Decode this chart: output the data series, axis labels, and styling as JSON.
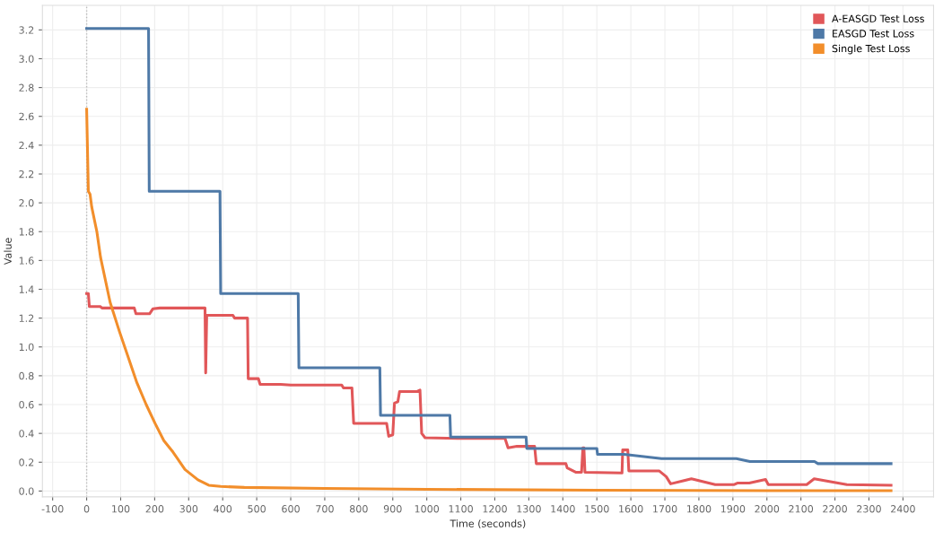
{
  "chart_data": {
    "type": "line",
    "xlabel": "Time (seconds)",
    "ylabel": "Value",
    "xlim": [
      -130,
      2490
    ],
    "ylim": [
      -0.04,
      3.37
    ],
    "xticks": [
      -100,
      0,
      100,
      200,
      300,
      400,
      500,
      600,
      700,
      800,
      900,
      1000,
      1100,
      1200,
      1300,
      1400,
      1500,
      1600,
      1700,
      1800,
      1900,
      2000,
      2100,
      2200,
      2300,
      2400
    ],
    "yticks": [
      {
        "value": 0,
        "label": "0.0"
      },
      {
        "value": 0.2,
        "label": "0.2"
      },
      {
        "value": 0.4,
        "label": "0.4"
      },
      {
        "value": 0.6,
        "label": "0.6"
      },
      {
        "value": 0.8,
        "label": "0.8"
      },
      {
        "value": 1,
        "label": "1.0"
      },
      {
        "value": 1.2,
        "label": "1.2"
      },
      {
        "value": 1.4,
        "label": "1.4"
      },
      {
        "value": 1.6,
        "label": "1.6"
      },
      {
        "value": 1.8,
        "label": "1.8"
      },
      {
        "value": 2,
        "label": "2.0"
      },
      {
        "value": 2.2,
        "label": "2.2"
      },
      {
        "value": 2.4,
        "label": "2.4"
      },
      {
        "value": 2.6,
        "label": "2.6"
      },
      {
        "value": 2.8,
        "label": "2.8"
      },
      {
        "value": 3,
        "label": "3.0"
      },
      {
        "value": 3.2,
        "label": "3.2"
      }
    ],
    "grid": true,
    "legend": "top right",
    "marker": "none",
    "line_style": "solid",
    "ref_lines": [
      {
        "axis": "x",
        "value": 0,
        "color": "#bbbbbb",
        "line_style": "dotted"
      }
    ],
    "series": [
      {
        "name": "A-EASGD Test Loss",
        "color": "#e15759",
        "x": [
          0,
          5,
          8,
          40,
          45,
          140,
          145,
          185,
          195,
          215,
          348,
          350,
          353,
          430,
          435,
          473,
          475,
          505,
          510,
          570,
          600,
          750,
          755,
          780,
          785,
          882,
          888,
          900,
          905,
          915,
          920,
          970,
          980,
          985,
          995,
          1100,
          1230,
          1239,
          1265,
          1317,
          1322,
          1409,
          1413,
          1426,
          1439,
          1455,
          1459,
          1462,
          1465,
          1574,
          1576,
          1591,
          1594,
          1683,
          1704,
          1717,
          1778,
          1848,
          1904,
          1913,
          1948,
          1996,
          2004,
          2117,
          2139,
          2235,
          2365
        ],
        "values": [
          1.37,
          1.37,
          1.28,
          1.28,
          1.27,
          1.27,
          1.23,
          1.23,
          1.265,
          1.27,
          1.27,
          0.82,
          1.22,
          1.22,
          1.2,
          1.2,
          0.78,
          0.78,
          0.74,
          0.74,
          0.735,
          0.735,
          0.715,
          0.715,
          0.47,
          0.47,
          0.38,
          0.39,
          0.61,
          0.62,
          0.69,
          0.69,
          0.7,
          0.4,
          0.37,
          0.365,
          0.365,
          0.3,
          0.31,
          0.31,
          0.19,
          0.19,
          0.16,
          0.145,
          0.13,
          0.13,
          0.3,
          0.3,
          0.13,
          0.125,
          0.285,
          0.285,
          0.14,
          0.14,
          0.1,
          0.05,
          0.085,
          0.045,
          0.045,
          0.055,
          0.055,
          0.08,
          0.045,
          0.045,
          0.085,
          0.045,
          0.04
        ]
      },
      {
        "name": "EASGD Test Loss",
        "color": "#4e79a7",
        "x": [
          0,
          182,
          184,
          392,
          394,
          622,
          624,
          862,
          864,
          1068,
          1070,
          1292,
          1294,
          1500,
          1502,
          1580,
          1690,
          1910,
          1950,
          2140,
          2150,
          2365
        ],
        "values": [
          3.21,
          3.21,
          2.08,
          2.08,
          1.37,
          1.37,
          0.855,
          0.855,
          0.525,
          0.525,
          0.375,
          0.375,
          0.295,
          0.295,
          0.255,
          0.255,
          0.225,
          0.225,
          0.205,
          0.205,
          0.19,
          0.19
        ]
      },
      {
        "name": "Single Test Loss",
        "color": "#f28e2b",
        "x": [
          0,
          5,
          10,
          15,
          30,
          41,
          69,
          96,
          122,
          148,
          175,
          201,
          227,
          254,
          289,
          327,
          359,
          394,
          464,
          700,
          1000,
          1500,
          2000,
          2365
        ],
        "values": [
          2.65,
          2.08,
          2.06,
          1.97,
          1.8,
          1.62,
          1.31,
          1.11,
          0.93,
          0.75,
          0.6,
          0.47,
          0.35,
          0.27,
          0.15,
          0.078,
          0.04,
          0.032,
          0.025,
          0.018,
          0.012,
          0.006,
          0.003,
          0.002
        ]
      }
    ]
  }
}
